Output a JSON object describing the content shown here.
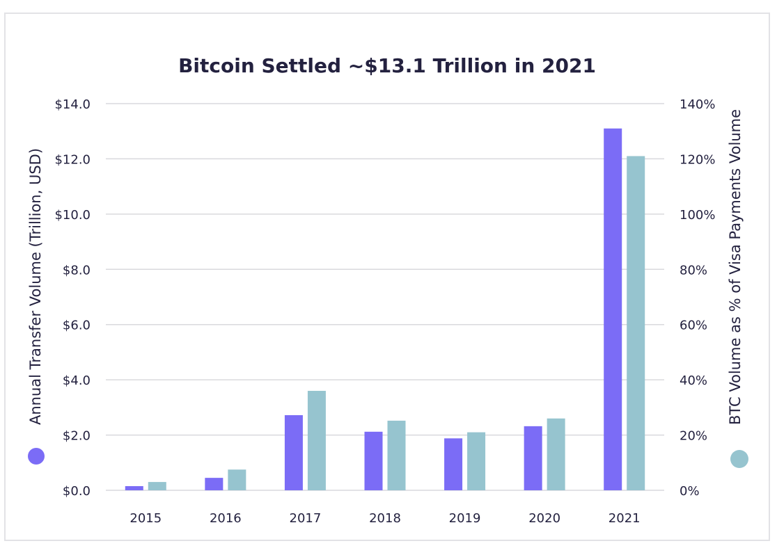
{
  "chart_data": {
    "type": "bar",
    "title": "Bitcoin Settled ~$13.1 Trillion in 2021",
    "categories": [
      "2015",
      "2016",
      "2017",
      "2018",
      "2019",
      "2020",
      "2021"
    ],
    "series": [
      {
        "name": "Annual Transfer Volume (Trillion, USD)",
        "axis": "left",
        "color": "#7b6cf6",
        "values": [
          0.15,
          0.45,
          2.72,
          2.12,
          1.88,
          2.32,
          13.1
        ]
      },
      {
        "name": "BTC Volume as % of Visa Payments Volume",
        "axis": "right",
        "color": "#96c4cf",
        "values": [
          3,
          7.5,
          36,
          25.2,
          21,
          26,
          121
        ]
      }
    ],
    "ylabel": "Annual Transfer Volume (Trillion, USD)",
    "ylabel_right": "BTC Volume as % of Visa Payments Volume",
    "ylim": [
      0,
      14
    ],
    "ylim_right": [
      0,
      140
    ],
    "yticks": [
      "$0.0",
      "$2.0",
      "$4.0",
      "$6.0",
      "$8.0",
      "$10.0",
      "$12.0",
      "$14.0"
    ],
    "yticks_right": [
      "0%",
      "20%",
      "40%",
      "60%",
      "80%",
      "100%",
      "120%",
      "140%"
    ],
    "grid": true,
    "legend": "axis-label markers (left and right)"
  }
}
